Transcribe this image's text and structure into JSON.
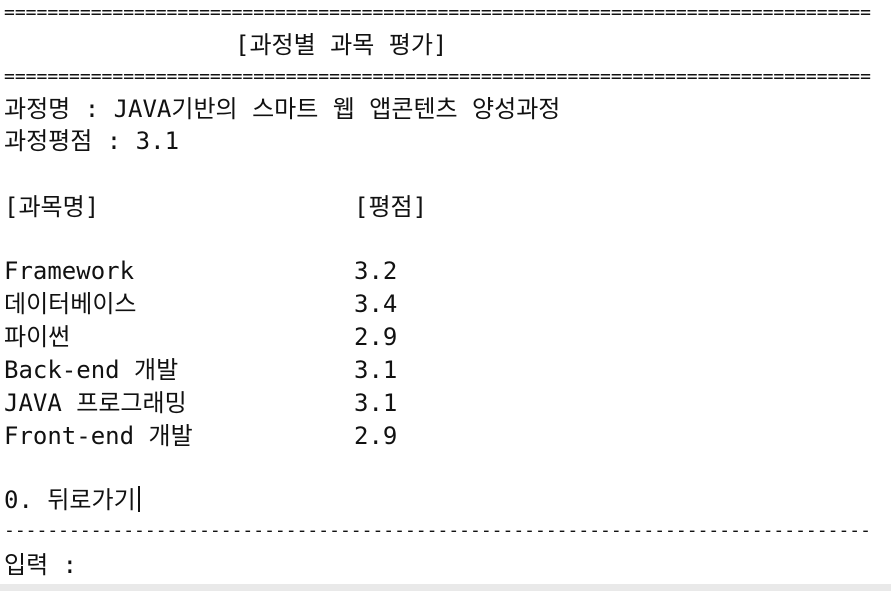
{
  "console": {
    "rule_double": "================================================================================",
    "rule_single": "--------------------------------------------------------------------------------",
    "title": "[과정별 과목 평가]",
    "course_name_line": "과정명 : JAVA기반의 스마트 웹 앱콘텐츠 양성과정",
    "course_score_line": "과정평점 : 3.1",
    "header_subject": "[과목명]",
    "header_score": "[평점]",
    "subjects": [
      {
        "name": "Framework",
        "score": "3.2"
      },
      {
        "name": "데이터베이스",
        "score": "3.4"
      },
      {
        "name": "파이썬",
        "score": "2.9"
      },
      {
        "name": "Back-end 개발",
        "score": "3.1"
      },
      {
        "name": "JAVA 프로그래밍",
        "score": "3.1"
      },
      {
        "name": "Front-end 개발",
        "score": "2.9"
      }
    ],
    "menu_back": "0. 뒤로가기",
    "input_prompt": "입력 :"
  }
}
